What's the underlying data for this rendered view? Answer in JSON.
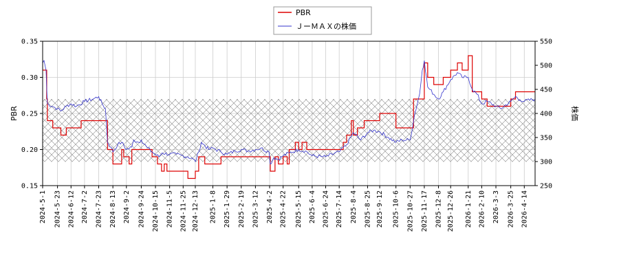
{
  "chart_data": {
    "type": "line",
    "ylabel_left": "PBR",
    "ylabel_right": "株価",
    "legend": {
      "placement": "top-center",
      "entries": [
        {
          "name": "PBR",
          "color": "#dd0000"
        },
        {
          "name": "ＪーＭＡＸの株価",
          "color": "#3333cc"
        }
      ]
    },
    "grid": true,
    "hatch_band": {
      "from": 0.183,
      "to": 0.27
    },
    "ylim_left": [
      0.15,
      0.35
    ],
    "ylim_right": [
      250,
      550
    ],
    "yticks_left": [
      "0.15",
      "0.20",
      "0.25",
      "0.30",
      "0.35"
    ],
    "yticks_right": [
      "250",
      "300",
      "350",
      "400",
      "450",
      "500",
      "550"
    ],
    "x_range": [
      "2024-05-01",
      "2026-04-30"
    ],
    "xticks": [
      "2024-5-1",
      "2024-5-23",
      "2024-6-12",
      "2024-7-2",
      "2024-7-23",
      "2024-8-13",
      "2024-9-2",
      "2024-9-24",
      "2024-10-15",
      "2024-11-5",
      "2024-11-25",
      "2024-12-13",
      "2025-1-8",
      "2025-1-29",
      "2025-2-19",
      "2025-3-12",
      "2025-4-2",
      "2025-4-22",
      "2025-5-15",
      "2025-6-4",
      "2025-6-24",
      "2025-7-14",
      "2025-8-4",
      "2025-8-25",
      "2025-9-12",
      "2025-10-6",
      "2025-10-27",
      "2025-11-17",
      "2025-12-8",
      "2025-12-26",
      "2026-1-21",
      "2026-2-10",
      "2026-3-3",
      "2026-3-25",
      "2026-4-14"
    ],
    "series": [
      {
        "name": "PBR",
        "axis": "left",
        "color": "#dd0000",
        "points": [
          [
            "2024-05-01",
            0.31
          ],
          [
            "2024-05-07",
            0.27
          ],
          [
            "2024-05-08",
            0.24
          ],
          [
            "2024-05-16",
            0.23
          ],
          [
            "2024-05-24",
            0.23
          ],
          [
            "2024-05-28",
            0.22
          ],
          [
            "2024-06-05",
            0.23
          ],
          [
            "2024-06-12",
            0.23
          ],
          [
            "2024-06-27",
            0.24
          ],
          [
            "2024-07-02",
            0.24
          ],
          [
            "2024-07-31",
            0.24
          ],
          [
            "2024-08-05",
            0.2
          ],
          [
            "2024-08-13",
            0.18
          ],
          [
            "2024-08-22",
            0.18
          ],
          [
            "2024-08-26",
            0.2
          ],
          [
            "2024-08-29",
            0.19
          ],
          [
            "2024-09-06",
            0.18
          ],
          [
            "2024-09-10",
            0.2
          ],
          [
            "2024-09-24",
            0.2
          ],
          [
            "2024-10-10",
            0.19
          ],
          [
            "2024-10-15",
            0.19
          ],
          [
            "2024-10-18",
            0.18
          ],
          [
            "2024-10-24",
            0.17
          ],
          [
            "2024-10-28",
            0.18
          ],
          [
            "2024-11-01",
            0.17
          ],
          [
            "2024-11-05",
            0.17
          ],
          [
            "2024-11-25",
            0.17
          ],
          [
            "2024-12-02",
            0.16
          ],
          [
            "2024-12-13",
            0.17
          ],
          [
            "2024-12-18",
            0.19
          ],
          [
            "2024-12-27",
            0.18
          ],
          [
            "2025-01-08",
            0.18
          ],
          [
            "2025-01-20",
            0.19
          ],
          [
            "2025-01-29",
            0.19
          ],
          [
            "2025-02-19",
            0.19
          ],
          [
            "2025-03-12",
            0.19
          ],
          [
            "2025-04-01",
            0.19
          ],
          [
            "2025-04-03",
            0.17
          ],
          [
            "2025-04-07",
            0.17
          ],
          [
            "2025-04-10",
            0.19
          ],
          [
            "2025-04-15",
            0.18
          ],
          [
            "2025-04-22",
            0.19
          ],
          [
            "2025-04-28",
            0.18
          ],
          [
            "2025-05-01",
            0.2
          ],
          [
            "2025-05-10",
            0.21
          ],
          [
            "2025-05-15",
            0.2
          ],
          [
            "2025-05-20",
            0.21
          ],
          [
            "2025-05-27",
            0.2
          ],
          [
            "2025-06-04",
            0.2
          ],
          [
            "2025-06-24",
            0.2
          ],
          [
            "2025-07-14",
            0.2
          ],
          [
            "2025-07-20",
            0.21
          ],
          [
            "2025-07-25",
            0.22
          ],
          [
            "2025-08-01",
            0.24
          ],
          [
            "2025-08-04",
            0.22
          ],
          [
            "2025-08-10",
            0.23
          ],
          [
            "2025-08-20",
            0.24
          ],
          [
            "2025-08-25",
            0.24
          ],
          [
            "2025-09-12",
            0.25
          ],
          [
            "2025-09-20",
            0.25
          ],
          [
            "2025-10-06",
            0.23
          ],
          [
            "2025-10-20",
            0.23
          ],
          [
            "2025-10-27",
            0.23
          ],
          [
            "2025-11-01",
            0.27
          ],
          [
            "2025-11-10",
            0.27
          ],
          [
            "2025-11-17",
            0.32
          ],
          [
            "2025-11-22",
            0.3
          ],
          [
            "2025-12-01",
            0.29
          ],
          [
            "2025-12-08",
            0.29
          ],
          [
            "2025-12-15",
            0.3
          ],
          [
            "2025-12-26",
            0.31
          ],
          [
            "2026-01-05",
            0.32
          ],
          [
            "2026-01-12",
            0.31
          ],
          [
            "2026-01-21",
            0.33
          ],
          [
            "2026-01-27",
            0.28
          ],
          [
            "2026-02-03",
            0.28
          ],
          [
            "2026-02-10",
            0.27
          ],
          [
            "2026-02-18",
            0.26
          ],
          [
            "2026-03-03",
            0.26
          ],
          [
            "2026-03-10",
            0.26
          ],
          [
            "2026-03-25",
            0.27
          ],
          [
            "2026-04-01",
            0.28
          ],
          [
            "2026-04-14",
            0.28
          ],
          [
            "2026-04-30",
            0.28
          ]
        ]
      },
      {
        "name": "ＪーＭＡＸの株価",
        "axis": "right",
        "color": "#3333cc",
        "points": [
          [
            "2024-05-01",
            505
          ],
          [
            "2024-05-03",
            510
          ],
          [
            "2024-05-06",
            490
          ],
          [
            "2024-05-08",
            420
          ],
          [
            "2024-05-15",
            415
          ],
          [
            "2024-05-23",
            410
          ],
          [
            "2024-05-28",
            405
          ],
          [
            "2024-06-05",
            415
          ],
          [
            "2024-06-12",
            420
          ],
          [
            "2024-06-20",
            415
          ],
          [
            "2024-07-02",
            425
          ],
          [
            "2024-07-15",
            430
          ],
          [
            "2024-07-23",
            435
          ],
          [
            "2024-07-28",
            420
          ],
          [
            "2024-08-02",
            410
          ],
          [
            "2024-08-05",
            340
          ],
          [
            "2024-08-10",
            330
          ],
          [
            "2024-08-13",
            320
          ],
          [
            "2024-08-20",
            335
          ],
          [
            "2024-08-26",
            340
          ],
          [
            "2024-09-02",
            325
          ],
          [
            "2024-09-10",
            330
          ],
          [
            "2024-09-13",
            345
          ],
          [
            "2024-09-20",
            340
          ],
          [
            "2024-09-24",
            345
          ],
          [
            "2024-10-02",
            330
          ],
          [
            "2024-10-10",
            320
          ],
          [
            "2024-10-15",
            315
          ],
          [
            "2024-10-20",
            310
          ],
          [
            "2024-10-25",
            318
          ],
          [
            "2024-11-05",
            315
          ],
          [
            "2024-11-15",
            315
          ],
          [
            "2024-11-25",
            312
          ],
          [
            "2024-12-02",
            310
          ],
          [
            "2024-12-10",
            305
          ],
          [
            "2024-12-13",
            300
          ],
          [
            "2024-12-18",
            320
          ],
          [
            "2024-12-22",
            340
          ],
          [
            "2025-01-02",
            325
          ],
          [
            "2025-01-08",
            328
          ],
          [
            "2025-01-20",
            320
          ],
          [
            "2025-01-29",
            315
          ],
          [
            "2025-02-10",
            322
          ],
          [
            "2025-02-19",
            325
          ],
          [
            "2025-03-01",
            322
          ],
          [
            "2025-03-12",
            325
          ],
          [
            "2025-03-20",
            328
          ],
          [
            "2025-04-01",
            320
          ],
          [
            "2025-04-03",
            295
          ],
          [
            "2025-04-08",
            308
          ],
          [
            "2025-04-15",
            305
          ],
          [
            "2025-04-22",
            312
          ],
          [
            "2025-05-01",
            318
          ],
          [
            "2025-05-15",
            325
          ],
          [
            "2025-05-25",
            322
          ],
          [
            "2025-06-04",
            312
          ],
          [
            "2025-06-20",
            310
          ],
          [
            "2025-06-24",
            310
          ],
          [
            "2025-07-14",
            320
          ],
          [
            "2025-07-25",
            335
          ],
          [
            "2025-08-04",
            360
          ],
          [
            "2025-08-15",
            345
          ],
          [
            "2025-08-25",
            360
          ],
          [
            "2025-09-03",
            365
          ],
          [
            "2025-09-12",
            362
          ],
          [
            "2025-09-25",
            350
          ],
          [
            "2025-10-06",
            340
          ],
          [
            "2025-10-15",
            345
          ],
          [
            "2025-10-27",
            345
          ],
          [
            "2025-11-03",
            400
          ],
          [
            "2025-11-10",
            440
          ],
          [
            "2025-11-14",
            490
          ],
          [
            "2025-11-17",
            510
          ],
          [
            "2025-11-22",
            455
          ],
          [
            "2025-12-01",
            440
          ],
          [
            "2025-12-08",
            430
          ],
          [
            "2025-12-15",
            445
          ],
          [
            "2025-12-26",
            470
          ],
          [
            "2026-01-05",
            485
          ],
          [
            "2026-01-12",
            475
          ],
          [
            "2026-01-21",
            475
          ],
          [
            "2026-01-27",
            450
          ],
          [
            "2026-02-03",
            440
          ],
          [
            "2026-02-10",
            420
          ],
          [
            "2026-02-18",
            425
          ],
          [
            "2026-03-03",
            415
          ],
          [
            "2026-03-10",
            410
          ],
          [
            "2026-03-25",
            425
          ],
          [
            "2026-04-01",
            435
          ],
          [
            "2026-04-08",
            428
          ],
          [
            "2026-04-14",
            425
          ],
          [
            "2026-04-30",
            430
          ]
        ]
      }
    ]
  }
}
